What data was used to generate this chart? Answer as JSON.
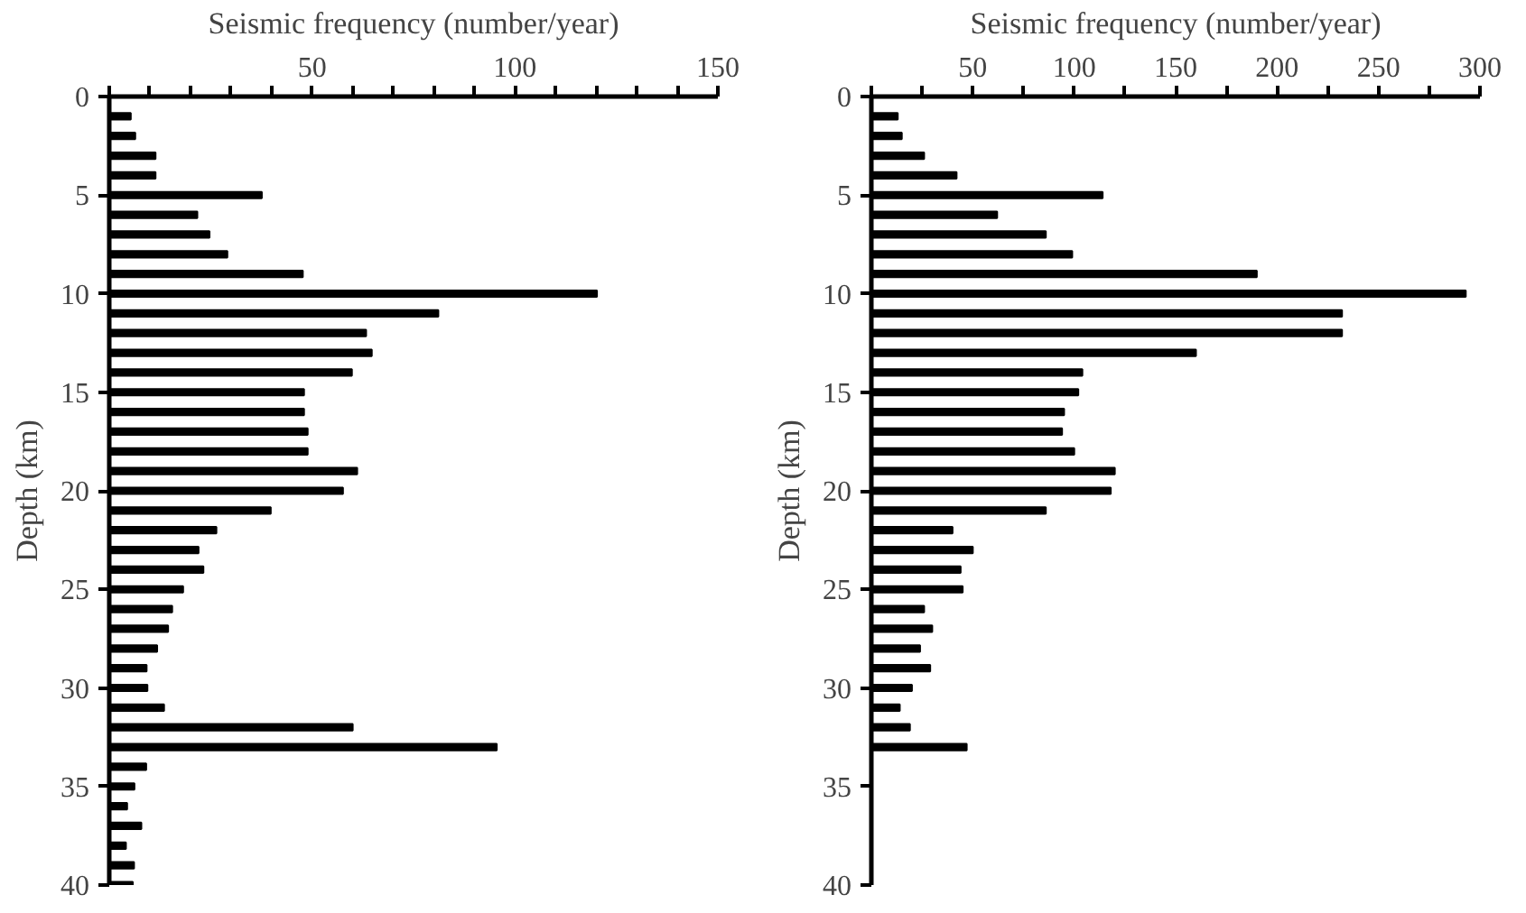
{
  "chart_data": [
    {
      "type": "bar",
      "orientation": "horizontal",
      "xlabel": "Seismic frequency (number/year)",
      "ylabel": "Depth (km)",
      "x": [
        1,
        2,
        3,
        4,
        5,
        6,
        7,
        8,
        9,
        10,
        11,
        12,
        13,
        14,
        15,
        16,
        17,
        18,
        19,
        20,
        21,
        22,
        23,
        24,
        25,
        26,
        27,
        28,
        29,
        30,
        31,
        32,
        33,
        34,
        35,
        36,
        37,
        38,
        39,
        40
      ],
      "values": [
        5.3,
        6.4,
        11.4,
        11.4,
        37.6,
        21.7,
        24.7,
        29.1,
        47.7,
        120.2,
        81.1,
        63.3,
        64.7,
        59.8,
        48.0,
        48.0,
        48.9,
        48.9,
        61.1,
        57.6,
        39.8,
        26.4,
        22.0,
        23.2,
        18.2,
        15.5,
        14.5,
        11.8,
        9.2,
        9.4,
        13.5,
        60.0,
        95.5,
        9.1,
        6.2,
        4.4,
        7.9,
        4.1,
        6.1,
        5.8
      ],
      "color": "#000000",
      "xlim": [
        0,
        150
      ],
      "xticks": [
        {
          "value": 0,
          "label": null
        },
        {
          "value": 10,
          "label": null
        },
        {
          "value": 20,
          "label": null
        },
        {
          "value": 30,
          "label": null
        },
        {
          "value": 40,
          "label": null
        },
        50,
        {
          "value": 60,
          "label": null
        },
        {
          "value": 70,
          "label": null
        },
        {
          "value": 80,
          "label": null
        },
        {
          "value": 90,
          "label": null
        },
        100,
        {
          "value": 110,
          "label": null
        },
        {
          "value": 120,
          "label": null
        },
        {
          "value": 130,
          "label": null
        },
        {
          "value": 140,
          "label": null
        },
        150
      ],
      "ylim": [
        40,
        0
      ],
      "yticks": [
        0,
        5,
        10,
        15,
        20,
        25,
        30,
        35,
        40
      ]
    },
    {
      "type": "bar",
      "orientation": "horizontal",
      "xlabel": "Seismic frequency (number/year)",
      "ylabel": "Depth (km)",
      "x": [
        1,
        2,
        3,
        4,
        5,
        6,
        7,
        8,
        9,
        10,
        11,
        12,
        13,
        14,
        15,
        16,
        17,
        18,
        19,
        20,
        21,
        22,
        23,
        24,
        25,
        26,
        27,
        28,
        29,
        30,
        31,
        32,
        33
      ],
      "values": [
        13,
        15,
        26,
        42,
        114,
        62,
        86,
        99,
        190,
        293,
        232,
        232,
        160,
        104,
        102,
        95,
        94,
        100,
        120,
        118,
        86,
        40,
        50,
        44,
        45,
        26,
        30,
        24,
        29,
        20,
        14,
        19,
        47
      ],
      "color": "#000000",
      "xlim": [
        0,
        300
      ],
      "xticks": [
        {
          "value": 0,
          "label": null
        },
        {
          "value": 25,
          "label": null
        },
        50,
        {
          "value": 75,
          "label": null
        },
        100,
        {
          "value": 125,
          "label": null
        },
        150,
        {
          "value": 175,
          "label": null
        },
        200,
        {
          "value": 225,
          "label": null
        },
        250,
        {
          "value": 275,
          "label": null
        },
        300
      ],
      "ylim": [
        40,
        0
      ],
      "yticks": [
        0,
        5,
        10,
        15,
        20,
        25,
        30,
        35,
        40
      ]
    }
  ]
}
